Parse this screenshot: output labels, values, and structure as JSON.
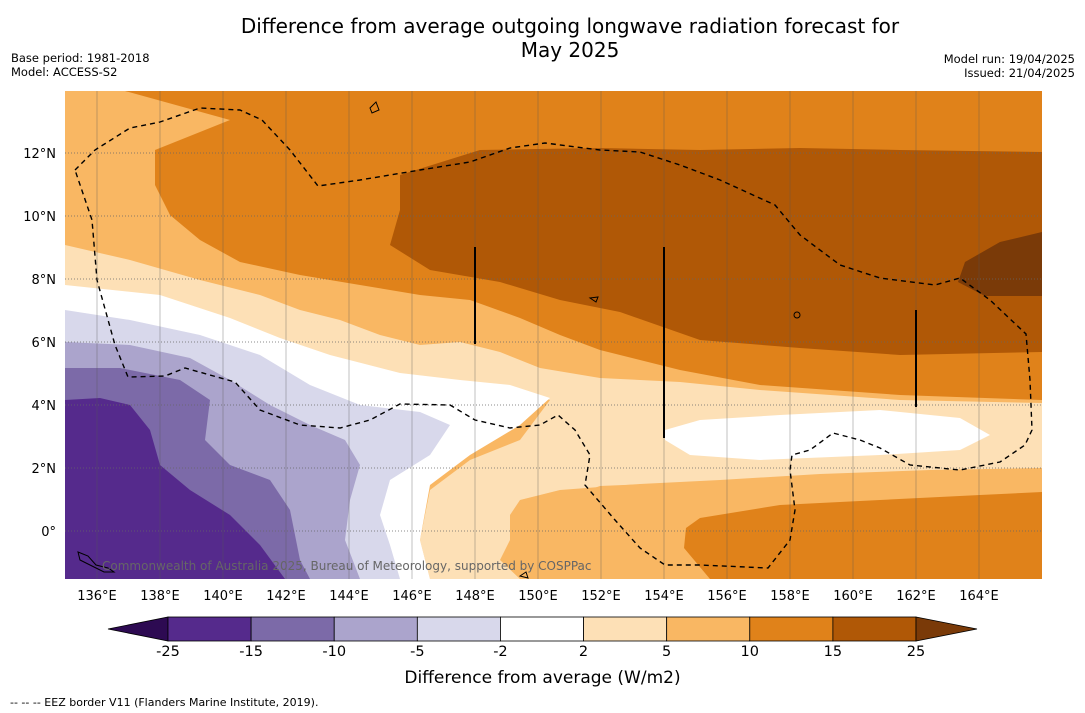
{
  "title": "Difference from average outgoing longwave radiation forecast for May 2025",
  "title_line1": "Difference from average outgoing longwave radiation forecast for",
  "title_line2": "May 2025",
  "base_period": "Base period: 1981-2018",
  "model": "Model: ACCESS-S2",
  "model_run": "Model run: 19/04/2025",
  "issued": "Issued: 21/04/2025",
  "credit": "Commonwealth of Australia 2025, Bureau of Meteorology, supported by COSPPac",
  "lon_labels": [
    "136°E",
    "138°E",
    "140°E",
    "142°E",
    "144°E",
    "146°E",
    "148°E",
    "150°E",
    "152°E",
    "154°E",
    "156°E",
    "158°E",
    "160°E",
    "162°E",
    "164°E"
  ],
  "lat_labels": [
    "12°N",
    "10°N",
    "8°N",
    "6°N",
    "4°N",
    "2°N",
    "0°"
  ],
  "colorbar": {
    "title": "Difference from average (W/m2)",
    "ticks": [
      "-25",
      "-15",
      "-10",
      "-5",
      "-2",
      "2",
      "5",
      "10",
      "15",
      "25"
    ],
    "colors": [
      "#2d0a52",
      "#552a8c",
      "#7c6aa8",
      "#aba4cc",
      "#d8d8eb",
      "#ffffff",
      "#fde0b6",
      "#f9b763",
      "#e0821a",
      "#b05806",
      "#7a3a08"
    ]
  },
  "footnote": "--  --  -- EEZ border V11 (Flanders Marine Institute, 2019)."
}
